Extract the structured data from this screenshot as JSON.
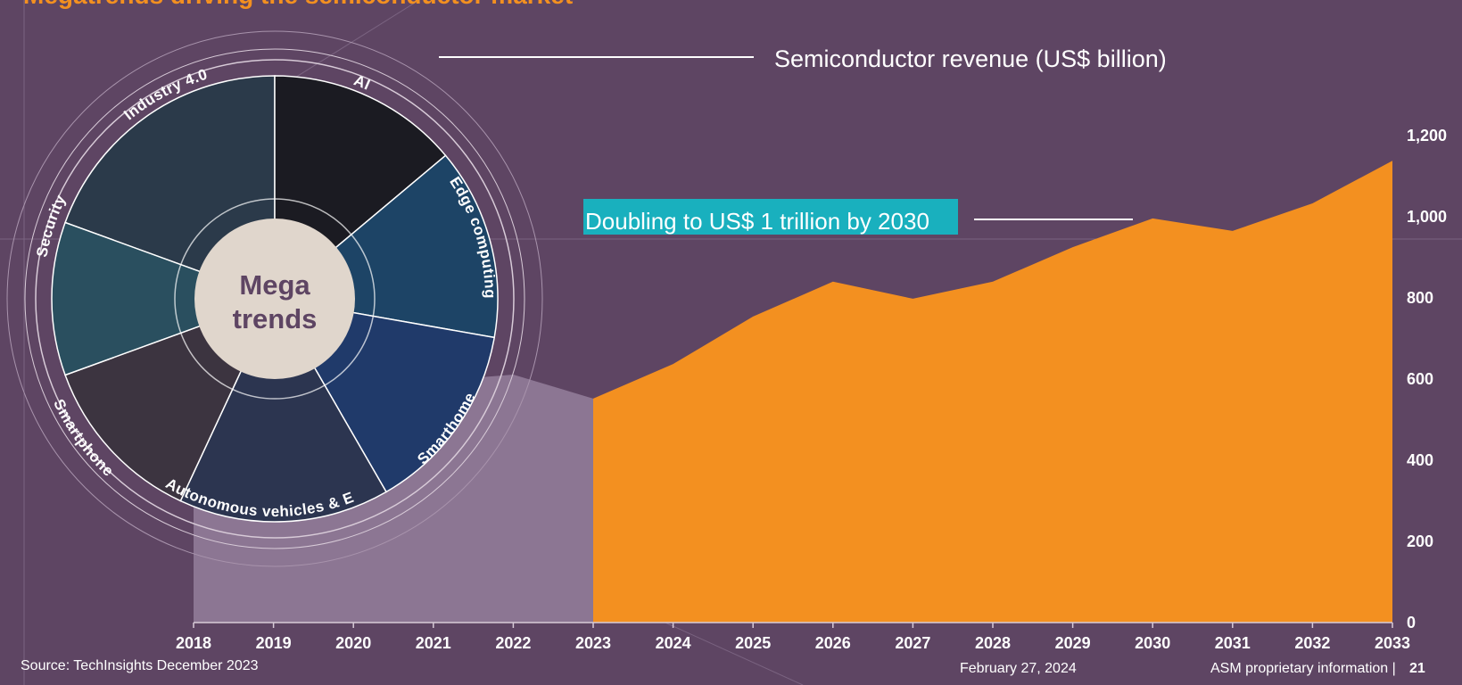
{
  "title": "Megatrends driving the semiconductor market",
  "chart_data": {
    "type": "area",
    "title": "Semiconductor revenue (US$ billion)",
    "annotation": "Doubling to US$ 1 trillion by 2030",
    "categories": [
      "2018",
      "2019",
      "2020",
      "2021",
      "2022",
      "2023",
      "2024",
      "2025",
      "2026",
      "2027",
      "2028",
      "2029",
      "2030",
      "2031",
      "2032",
      "2033"
    ],
    "series": [
      {
        "color": "#8c7693",
        "values": [
          470,
          415,
          440,
          595,
          611,
          552,
          null,
          null,
          null,
          null,
          null,
          null,
          null,
          null,
          null,
          null
        ]
      },
      {
        "color": "#f39020",
        "values": [
          null,
          null,
          null,
          null,
          null,
          552,
          637,
          754,
          840,
          798,
          840,
          925,
          996,
          965,
          1033,
          1138
        ]
      }
    ],
    "ylim": [
      0,
      1200
    ],
    "yticks": [
      0,
      200,
      400,
      600,
      800,
      {
        "value": 1000,
        "label": "1,000"
      },
      {
        "value": 1200,
        "label": "1,200"
      }
    ],
    "y_axis_side": "right"
  },
  "megatrends": {
    "center": [
      "Mega",
      "trends"
    ],
    "labels": [
      "Industry 4.0",
      "AI",
      "Edge computing",
      "Smarthome",
      "Autonomous vehicles & EV",
      "Smartphone",
      "Security"
    ]
  },
  "footer": {
    "source": "Source: TechInsights December 2023",
    "date": "February 27, 2024",
    "info": "ASM proprietary information |",
    "page": "21"
  }
}
